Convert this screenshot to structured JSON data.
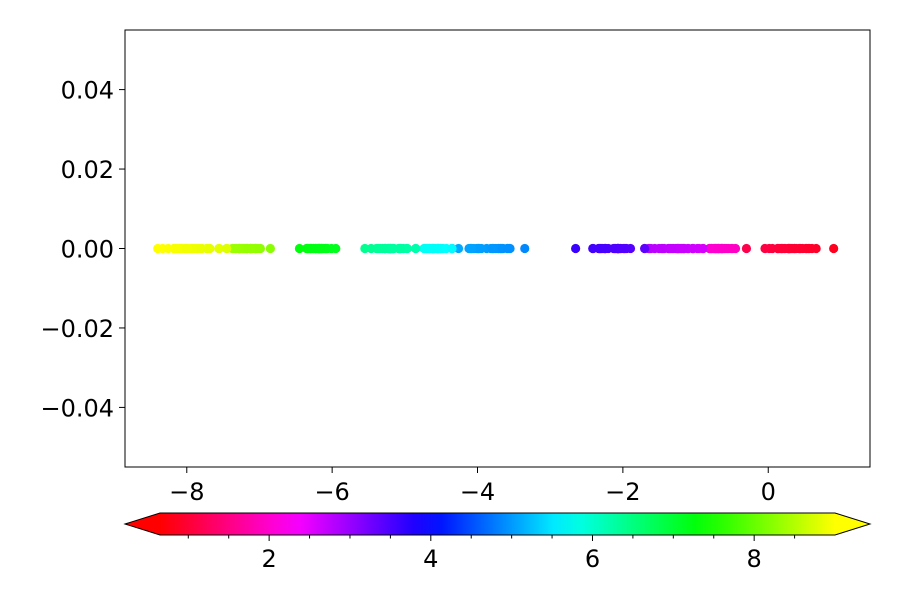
{
  "chart_data": {
    "type": "scatter",
    "title": "",
    "xlabel": "",
    "ylabel": "",
    "xlim": [
      -8.85,
      1.4
    ],
    "ylim": [
      -0.055,
      0.055
    ],
    "x_ticks": [
      -8,
      -6,
      -4,
      -2,
      0
    ],
    "x_tick_labels": [
      "−8",
      "−6",
      "−4",
      "−2",
      "0"
    ],
    "y_ticks": [
      0.04,
      0.02,
      0.0,
      -0.02,
      -0.04
    ],
    "y_tick_labels": [
      "0.04",
      "0.02",
      "0.00",
      "−0.02",
      "−0.04"
    ],
    "grid": false,
    "colorbar": {
      "colormap": "gist_rainbow",
      "orientation": "horizontal",
      "position": "bottom",
      "range": [
        0.65,
        9.0
      ],
      "extend": "both",
      "ticks": [
        2,
        4,
        6,
        8
      ],
      "tick_labels": [
        "2",
        "4",
        "6",
        "8"
      ],
      "minor_ticks": [
        1.0,
        1.5,
        2.5,
        3.0,
        3.5,
        4.5,
        5.0,
        5.5,
        6.5,
        7.0,
        7.5,
        8.5
      ]
    },
    "clusters": [
      {
        "x_range": [
          -0.3,
          0.9
        ],
        "color_value": 1.0,
        "y": 0
      },
      {
        "x_range": [
          -0.95,
          -0.45
        ],
        "color_value": 2.0,
        "y": 0
      },
      {
        "x_range": [
          -1.7,
          -0.9
        ],
        "color_value": 2.7,
        "y": 0
      },
      {
        "x_range": [
          -2.65,
          -1.7
        ],
        "color_value": 3.5,
        "y": 0
      },
      {
        "x_range": [
          -4.35,
          -3.35
        ],
        "color_value": 5.0,
        "y": 0
      },
      {
        "x_range": [
          -4.85,
          -4.35
        ],
        "color_value": 5.7,
        "y": 0
      },
      {
        "x_range": [
          -5.55,
          -4.85
        ],
        "color_value": 6.3,
        "y": 0
      },
      {
        "x_range": [
          -6.45,
          -5.95
        ],
        "color_value": 7.2,
        "y": 0
      },
      {
        "x_range": [
          -7.45,
          -6.85
        ],
        "color_value": 8.3,
        "y": 0
      },
      {
        "x_range": [
          -8.4,
          -7.45
        ],
        "color_value": 8.9,
        "y": 0
      }
    ]
  }
}
